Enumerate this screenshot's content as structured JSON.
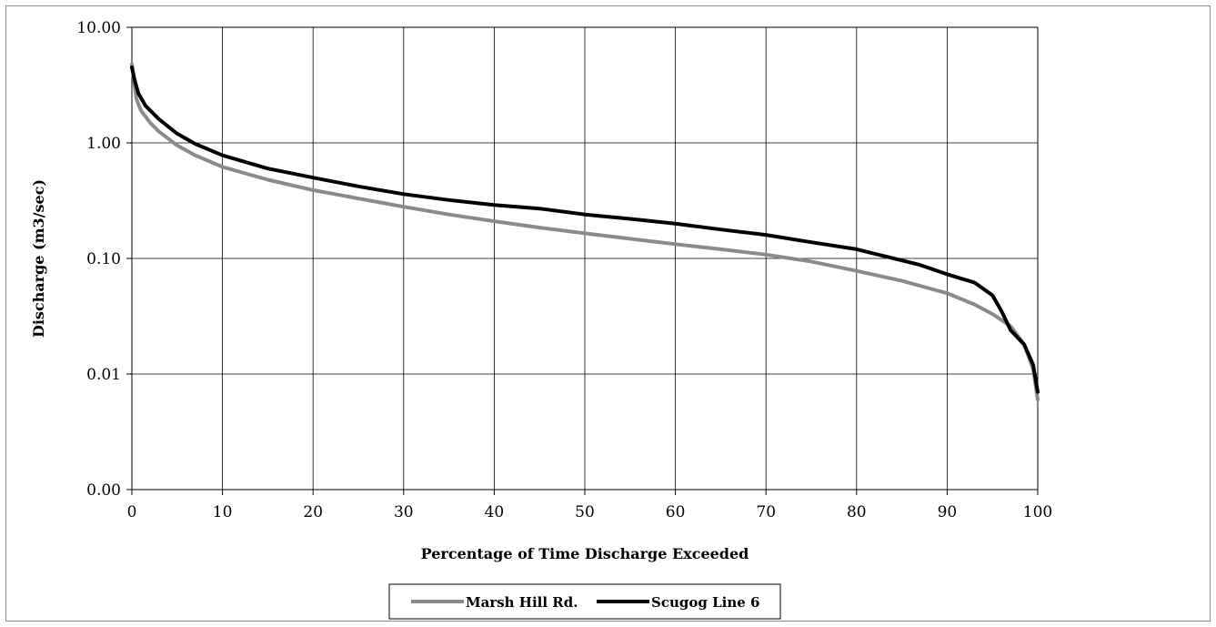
{
  "chart_data": {
    "type": "line",
    "title": "",
    "xlabel": "Percentage of Time Discharge Exceeded",
    "ylabel": "Discharge (m3/sec)",
    "xlim": [
      0,
      100
    ],
    "ylim": [
      0.001,
      10
    ],
    "yscale": "log",
    "grid": true,
    "legend": "bottom-center",
    "x_ticks": [
      0,
      10,
      20,
      30,
      40,
      50,
      60,
      70,
      80,
      90,
      100
    ],
    "x_tick_labels": [
      "0",
      "10",
      "20",
      "30",
      "40",
      "50",
      "60",
      "70",
      "80",
      "90",
      "100"
    ],
    "y_ticks": [
      0.001,
      0.01,
      0.1,
      1,
      10
    ],
    "y_tick_labels": [
      "0.00",
      "0.01",
      "0.10",
      "1.00",
      "10.00"
    ],
    "series": [
      {
        "name": "Marsh Hill Rd.",
        "color": "#8a8a8a",
        "x": [
          0,
          0.5,
          1,
          2,
          3,
          5,
          7,
          10,
          15,
          20,
          25,
          30,
          35,
          40,
          45,
          50,
          55,
          60,
          65,
          70,
          75,
          80,
          85,
          90,
          93,
          95,
          97,
          98.5,
          99.5,
          100
        ],
        "y": [
          4.8,
          2.4,
          1.9,
          1.5,
          1.25,
          0.95,
          0.78,
          0.62,
          0.48,
          0.39,
          0.33,
          0.28,
          0.24,
          0.21,
          0.185,
          0.165,
          0.148,
          0.133,
          0.12,
          0.108,
          0.094,
          0.078,
          0.064,
          0.05,
          0.04,
          0.033,
          0.026,
          0.018,
          0.011,
          0.006
        ]
      },
      {
        "name": "Scugog Line 6",
        "color": "#000000",
        "x": [
          0,
          0.3,
          0.7,
          1.5,
          3,
          5,
          7,
          10,
          15,
          20,
          25,
          30,
          35,
          40,
          45,
          50,
          55,
          60,
          65,
          70,
          75,
          80,
          83,
          87,
          90,
          93,
          95,
          96,
          97,
          98.5,
          99.5,
          100
        ],
        "y": [
          4.5,
          3.5,
          2.7,
          2.1,
          1.6,
          1.2,
          0.98,
          0.78,
          0.6,
          0.5,
          0.42,
          0.36,
          0.32,
          0.29,
          0.27,
          0.24,
          0.22,
          0.2,
          0.178,
          0.16,
          0.138,
          0.12,
          0.105,
          0.088,
          0.073,
          0.062,
          0.048,
          0.035,
          0.024,
          0.018,
          0.012,
          0.007
        ]
      }
    ]
  }
}
